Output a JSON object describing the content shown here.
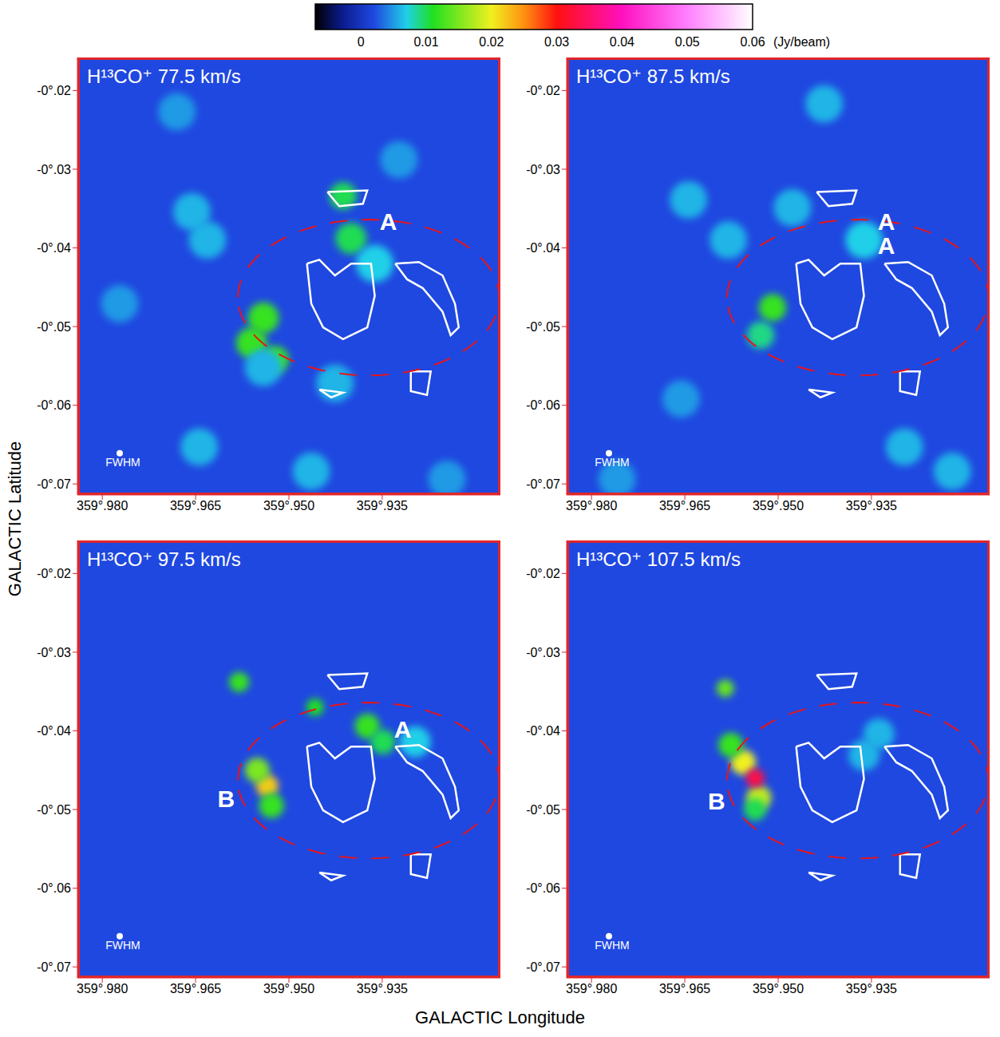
{
  "colorbar": {
    "range": [
      -0.007,
      0.06
    ],
    "ticks": [
      0,
      0.01,
      0.02,
      0.03,
      0.04,
      0.05,
      0.06
    ],
    "unit": "(Jy/beam)"
  },
  "xlabel": "GALACTIC Longitude",
  "ylabel": "GALACTIC Latitude",
  "xlim": [
    359.984,
    359.916
  ],
  "ylim": [
    -0.0714,
    -0.0158
  ],
  "xticks": [
    {
      "value": 359.98,
      "label": "359°.980"
    },
    {
      "value": 359.965,
      "label": "359°.965"
    },
    {
      "value": 359.95,
      "label": "359°.950"
    },
    {
      "value": 359.935,
      "label": "359°.935"
    }
  ],
  "yticks": [
    {
      "value": -0.02,
      "label": "-0°.02"
    },
    {
      "value": -0.03,
      "label": "-0°.03"
    },
    {
      "value": -0.04,
      "label": "-0°.04"
    },
    {
      "value": -0.05,
      "label": "-0°.05"
    },
    {
      "value": -0.06,
      "label": "-0°.06"
    },
    {
      "value": -0.07,
      "label": "-0°.07"
    }
  ],
  "beam_label": "FWHM",
  "beam": [
    359.9772,
    -0.0661
  ],
  "ring": {
    "center": [
      359.9372,
      -0.0463
    ],
    "radii": [
      0.021,
      0.0099
    ]
  },
  "contours": [
    [
      [
        359.9471,
        -0.042
      ],
      [
        359.9451,
        -0.0415
      ],
      [
        359.9426,
        -0.0435
      ],
      [
        359.94,
        -0.042
      ],
      [
        359.9368,
        -0.042
      ],
      [
        359.9362,
        -0.0461
      ],
      [
        359.9374,
        -0.0501
      ],
      [
        359.9413,
        -0.0516
      ],
      [
        359.9445,
        -0.0501
      ],
      [
        359.9464,
        -0.0471
      ],
      [
        359.9471,
        -0.042
      ]
    ],
    [
      [
        359.9329,
        -0.042
      ],
      [
        359.9291,
        -0.0418
      ],
      [
        359.9253,
        -0.0435
      ],
      [
        359.9233,
        -0.0471
      ],
      [
        359.9227,
        -0.0501
      ],
      [
        359.924,
        -0.0511
      ],
      [
        359.9253,
        -0.0481
      ],
      [
        359.9285,
        -0.0451
      ],
      [
        359.931,
        -0.044
      ],
      [
        359.9329,
        -0.042
      ]
    ],
    [
      [
        359.9438,
        -0.0329
      ],
      [
        359.9374,
        -0.0327
      ],
      [
        359.9381,
        -0.0344
      ],
      [
        359.9419,
        -0.0347
      ],
      [
        359.9438,
        -0.0329
      ]
    ],
    [
      [
        359.9304,
        -0.0557
      ],
      [
        359.9272,
        -0.0557
      ],
      [
        359.9278,
        -0.0587
      ],
      [
        359.9304,
        -0.0582
      ],
      [
        359.9304,
        -0.0557
      ]
    ],
    [
      [
        359.9451,
        -0.058
      ],
      [
        359.9413,
        -0.0584
      ],
      [
        359.9432,
        -0.059
      ],
      [
        359.9451,
        -0.058
      ]
    ]
  ],
  "chart_data": [
    {
      "type": "heatmap",
      "title": "H¹³CO⁺ 77.5 km/s",
      "emission": [
        {
          "x": 359.9541,
          "y": -0.0489,
          "value": 0.012,
          "r": 0.0025
        },
        {
          "x": 359.956,
          "y": -0.0521,
          "value": 0.012,
          "r": 0.0025
        },
        {
          "x": 359.9522,
          "y": -0.0542,
          "value": 0.012,
          "r": 0.0022
        },
        {
          "x": 359.94,
          "y": -0.0388,
          "value": 0.01,
          "r": 0.0025
        },
        {
          "x": 359.9413,
          "y": -0.0334,
          "value": 0.01,
          "r": 0.0022
        },
        {
          "x": 359.9631,
          "y": -0.039,
          "value": 0.006,
          "r": 0.003
        },
        {
          "x": 359.9656,
          "y": -0.0354,
          "value": 0.006,
          "r": 0.003
        },
        {
          "x": 359.9362,
          "y": -0.042,
          "value": 0.007,
          "r": 0.003
        },
        {
          "x": 359.9541,
          "y": -0.0552,
          "value": 0.006,
          "r": 0.003
        },
        {
          "x": 359.9644,
          "y": -0.0653,
          "value": 0.006,
          "r": 0.003
        },
        {
          "x": 359.9464,
          "y": -0.0684,
          "value": 0.006,
          "r": 0.003
        },
        {
          "x": 359.968,
          "y": -0.0227,
          "value": 0.005,
          "r": 0.003
        },
        {
          "x": 359.9323,
          "y": -0.0288,
          "value": 0.005,
          "r": 0.003
        },
        {
          "x": 359.9772,
          "y": -0.0471,
          "value": 0.005,
          "r": 0.003
        },
        {
          "x": 359.9426,
          "y": -0.0572,
          "value": 0.006,
          "r": 0.003
        },
        {
          "x": 359.9246,
          "y": -0.0694,
          "value": 0.005,
          "r": 0.003
        }
      ],
      "annotations": [
        {
          "text": "A",
          "x": 359.934,
          "y": -0.0366
        }
      ]
    },
    {
      "type": "heatmap",
      "title": "H¹³CO⁺ 87.5 km/s",
      "emission": [
        {
          "x": 359.9509,
          "y": -0.0476,
          "value": 0.012,
          "r": 0.0022
        },
        {
          "x": 359.9528,
          "y": -0.0511,
          "value": 0.009,
          "r": 0.0022
        },
        {
          "x": 359.9362,
          "y": -0.039,
          "value": 0.007,
          "r": 0.003
        },
        {
          "x": 359.9477,
          "y": -0.0349,
          "value": 0.006,
          "r": 0.003
        },
        {
          "x": 359.9644,
          "y": -0.0339,
          "value": 0.006,
          "r": 0.003
        },
        {
          "x": 359.9426,
          "y": -0.0217,
          "value": 0.006,
          "r": 0.003
        },
        {
          "x": 359.922,
          "y": -0.0684,
          "value": 0.006,
          "r": 0.003
        },
        {
          "x": 359.9297,
          "y": -0.0653,
          "value": 0.006,
          "r": 0.003
        },
        {
          "x": 359.9656,
          "y": -0.0592,
          "value": 0.005,
          "r": 0.003
        },
        {
          "x": 359.9759,
          "y": -0.0694,
          "value": 0.005,
          "r": 0.003
        },
        {
          "x": 359.958,
          "y": -0.039,
          "value": 0.006,
          "r": 0.003
        }
      ],
      "annotations": [
        {
          "text": "A",
          "x": 359.9326,
          "y": -0.0366
        },
        {
          "text": "A",
          "x": 359.9326,
          "y": -0.0397
        }
      ]
    },
    {
      "type": "heatmap",
      "title": "H¹³CO⁺ 97.5 km/s",
      "emission": [
        {
          "x": 359.9535,
          "y": -0.047,
          "value": 0.022,
          "r": 0.0018
        },
        {
          "x": 359.9551,
          "y": -0.045,
          "value": 0.015,
          "r": 0.002
        },
        {
          "x": 359.9528,
          "y": -0.0495,
          "value": 0.012,
          "r": 0.002
        },
        {
          "x": 359.9374,
          "y": -0.0394,
          "value": 0.012,
          "r": 0.002
        },
        {
          "x": 359.9349,
          "y": -0.0414,
          "value": 0.01,
          "r": 0.002
        },
        {
          "x": 359.958,
          "y": -0.0338,
          "value": 0.012,
          "r": 0.0016
        },
        {
          "x": 359.9458,
          "y": -0.037,
          "value": 0.011,
          "r": 0.0014
        },
        {
          "x": 359.9297,
          "y": -0.0414,
          "value": 0.007,
          "r": 0.0025
        }
      ],
      "annotations": [
        {
          "text": "A",
          "x": 359.9317,
          "y": -0.0398
        },
        {
          "text": "B",
          "x": 359.9601,
          "y": -0.0486
        }
      ]
    },
    {
      "type": "heatmap",
      "title": "H¹³CO⁺ 107.5 km/s",
      "emission": [
        {
          "x": 359.9556,
          "y": -0.044,
          "value": 0.02,
          "r": 0.002
        },
        {
          "x": 359.9531,
          "y": -0.0485,
          "value": 0.018,
          "r": 0.002
        },
        {
          "x": 359.9537,
          "y": -0.046,
          "value": 0.033,
          "r": 0.0015
        },
        {
          "x": 359.9576,
          "y": -0.0418,
          "value": 0.012,
          "r": 0.002
        },
        {
          "x": 359.9585,
          "y": -0.0346,
          "value": 0.014,
          "r": 0.0014
        },
        {
          "x": 359.9537,
          "y": -0.05,
          "value": 0.01,
          "r": 0.0018
        },
        {
          "x": 359.9338,
          "y": -0.0404,
          "value": 0.006,
          "r": 0.0025
        },
        {
          "x": 359.9362,
          "y": -0.0431,
          "value": 0.006,
          "r": 0.0025
        }
      ],
      "annotations": [
        {
          "text": "B",
          "x": 359.9599,
          "y": -0.0489
        }
      ]
    }
  ]
}
